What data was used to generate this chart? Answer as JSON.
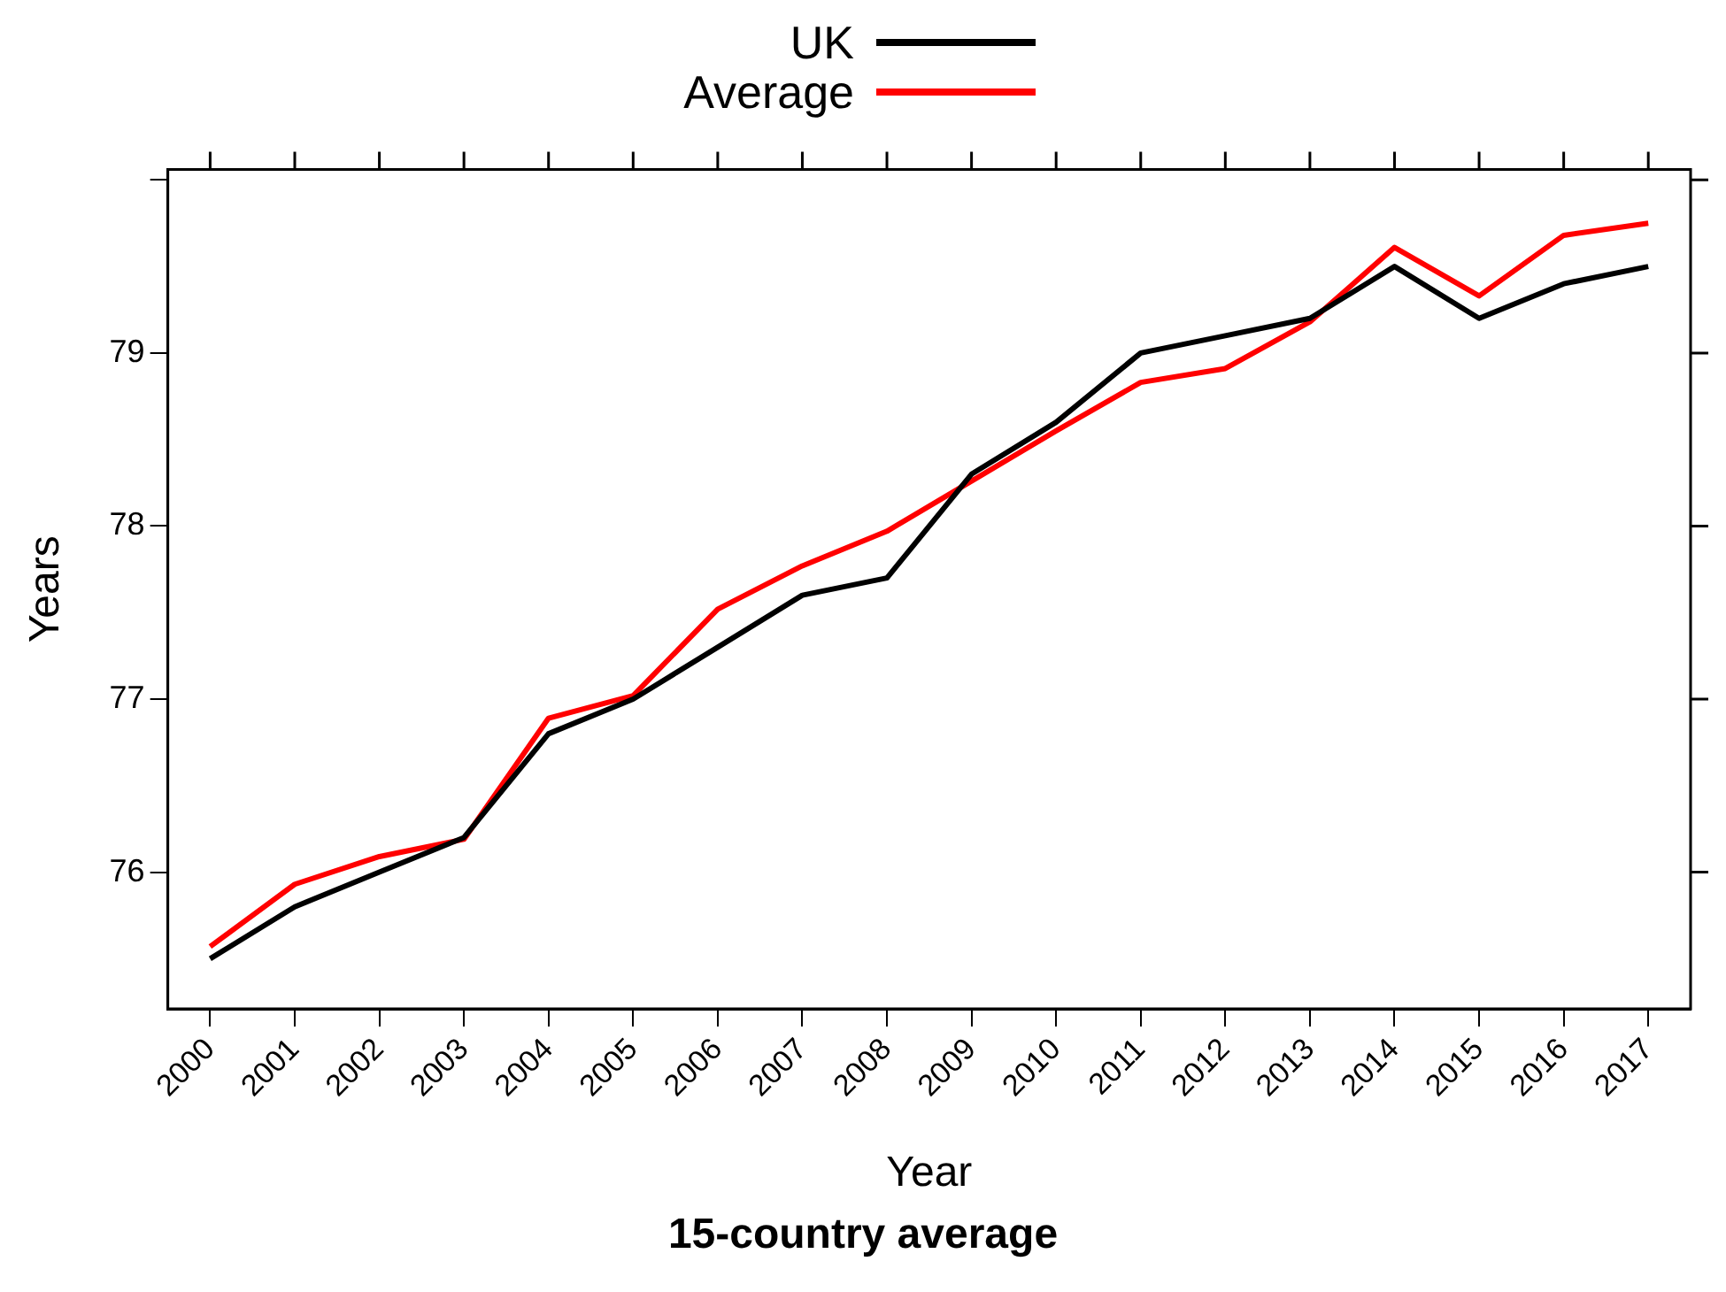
{
  "chart_data": {
    "type": "line",
    "title": "15-country average",
    "xlabel": "Year",
    "ylabel": "Years",
    "categories": [
      "2000",
      "2001",
      "2002",
      "2003",
      "2004",
      "2005",
      "2006",
      "2007",
      "2008",
      "2009",
      "2010",
      "2011",
      "2012",
      "2013",
      "2014",
      "2015",
      "2016",
      "2017"
    ],
    "series": [
      {
        "name": "UK",
        "color": "#000000",
        "values": [
          75.5,
          75.8,
          76.0,
          76.2,
          76.8,
          77.0,
          77.3,
          77.6,
          77.7,
          78.3,
          78.6,
          79.0,
          79.1,
          79.2,
          79.5,
          79.2,
          79.4,
          79.5
        ]
      },
      {
        "name": "Average",
        "color": "#ff0000",
        "values": [
          75.57,
          75.93,
          76.09,
          76.19,
          76.89,
          77.02,
          77.52,
          77.77,
          77.97,
          78.26,
          78.55,
          78.83,
          78.91,
          79.18,
          79.61,
          79.33,
          79.68,
          79.75
        ]
      }
    ],
    "ylim": [
      75.21,
      80.06
    ],
    "yticks": [
      76,
      77,
      78,
      79,
      {
        "value": 80,
        "label": null
      }
    ],
    "grid": false,
    "legend": "top",
    "marker": "none",
    "line_style": "solid"
  }
}
